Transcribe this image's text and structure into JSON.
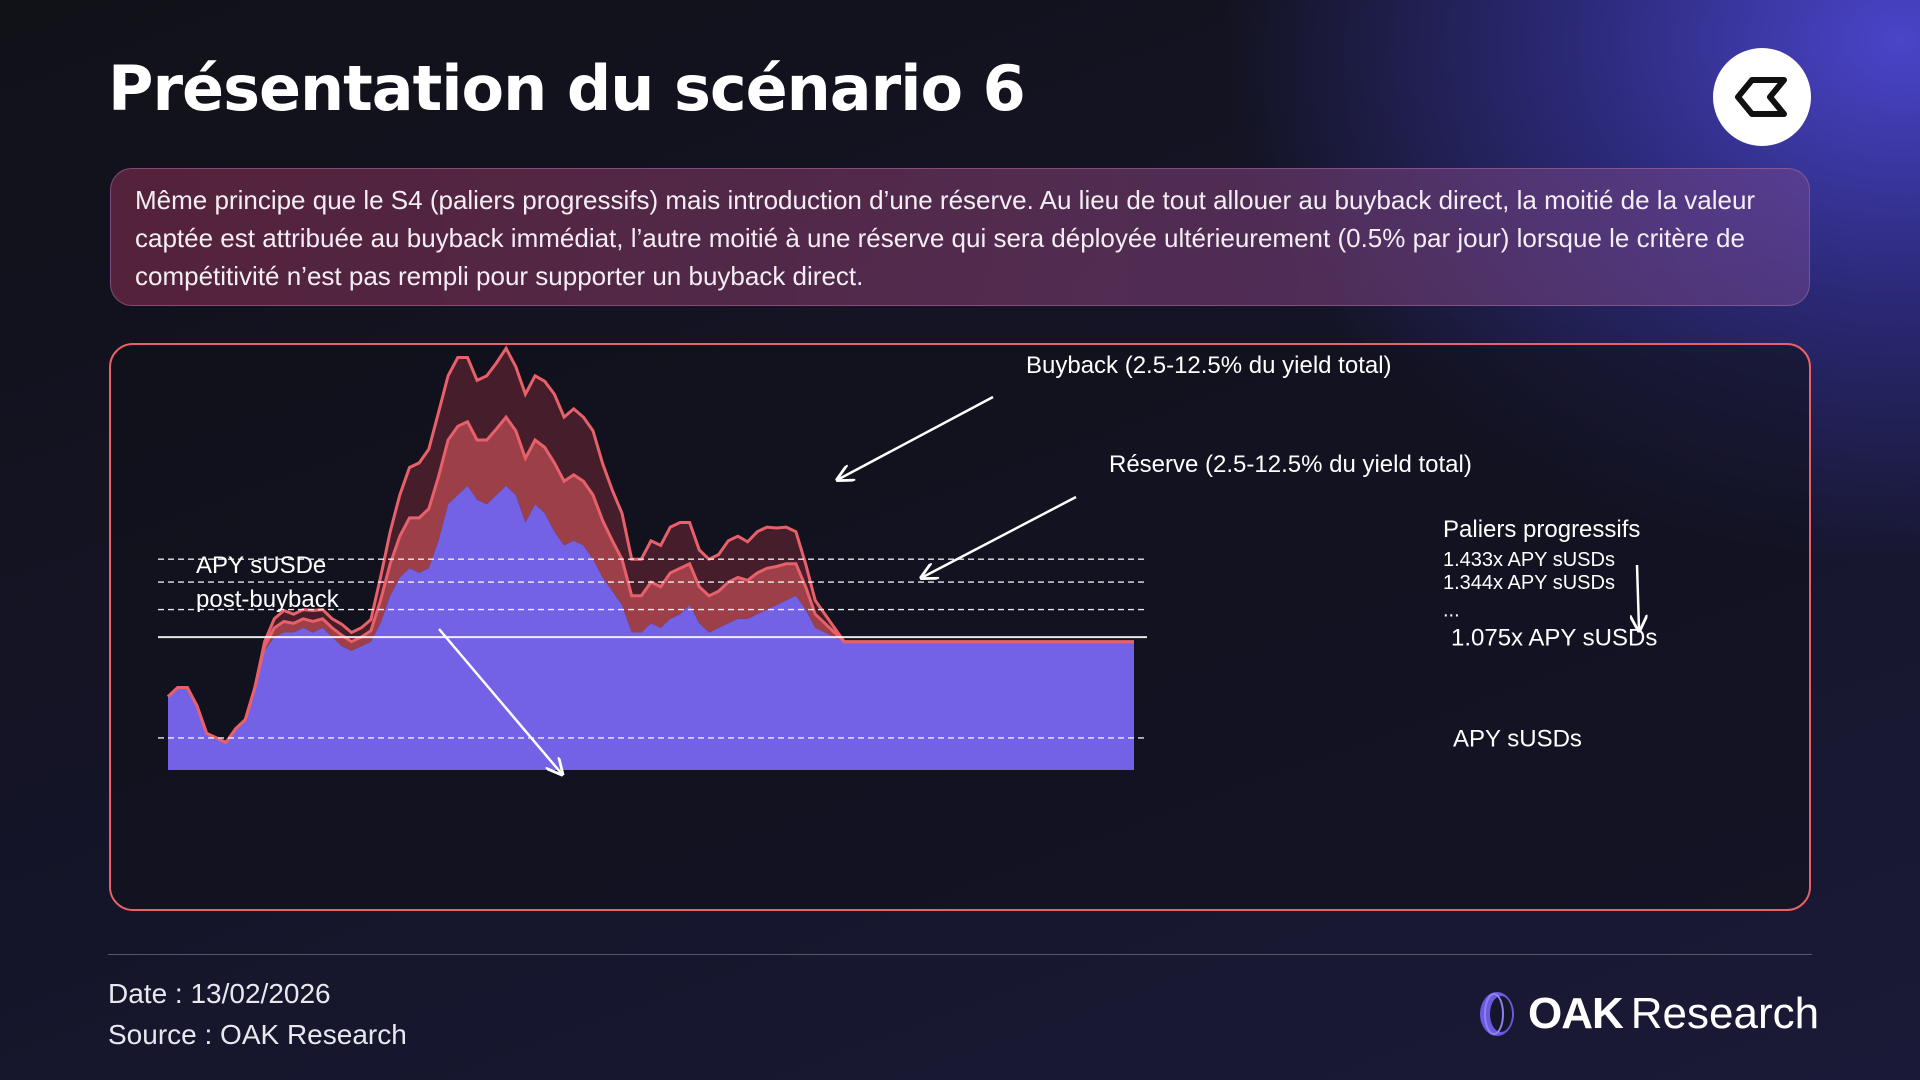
{
  "header": {
    "title": "Présentation du scénario 6",
    "logo_icon": "exponent-icon"
  },
  "description": "Même principe que le S4 (paliers progressifs) mais introduction d’une réserve. Au lieu de tout allouer au buyback direct, la moitié de la valeur captée est attribuée au buyback immédiat, l’autre moitié à une réserve qui sera déployée ultérieurement (0.5% par jour) lorsque le critère de compétitivité n’est pas rempli pour supporter un buyback direct.",
  "chart_data": {
    "type": "area",
    "title": "",
    "x": [
      0,
      1,
      2,
      3,
      4,
      5,
      6,
      7,
      8,
      9,
      10,
      11,
      12,
      13,
      14,
      15,
      16,
      17,
      18,
      19,
      20,
      21,
      22,
      23,
      24,
      25,
      26,
      27,
      28,
      29,
      30,
      31,
      32,
      33,
      34,
      35,
      36,
      37,
      38,
      39,
      40,
      41,
      42,
      43,
      44,
      45,
      46,
      47,
      48,
      49,
      50,
      51,
      52,
      53,
      54,
      55,
      56,
      57,
      58,
      59,
      60,
      61,
      62,
      63,
      64,
      65,
      66,
      67,
      68,
      69,
      70,
      71,
      72,
      73,
      74,
      75,
      76,
      77,
      78,
      79,
      80,
      81,
      82,
      83,
      84,
      85,
      86,
      87,
      88,
      89,
      90,
      91,
      92,
      93,
      94,
      95,
      96,
      97,
      98,
      99,
      100
    ],
    "series": [
      {
        "name": "APY sUSDe post-buyback",
        "color": "#7361e6",
        "values": [
          0.8,
          0.9,
          0.9,
          0.7,
          0.4,
          0.35,
          0.3,
          0.45,
          0.55,
          0.9,
          1.3,
          1.45,
          1.5,
          1.5,
          1.55,
          1.5,
          1.55,
          1.45,
          1.35,
          1.3,
          1.35,
          1.4,
          1.6,
          1.9,
          2.1,
          2.2,
          2.15,
          2.2,
          2.5,
          2.9,
          3.0,
          3.1,
          2.95,
          2.9,
          3.0,
          3.1,
          3.0,
          2.7,
          2.9,
          2.8,
          2.6,
          2.45,
          2.5,
          2.45,
          2.3,
          2.1,
          1.95,
          1.8,
          1.5,
          1.5,
          1.6,
          1.55,
          1.65,
          1.7,
          1.8,
          1.6,
          1.5,
          1.55,
          1.6,
          1.65,
          1.65,
          1.7,
          1.75,
          1.8,
          1.85,
          1.9,
          1.75,
          1.55,
          1.5,
          1.45,
          1.4,
          1.4,
          1.4,
          1.4,
          1.4,
          1.4,
          1.4,
          1.4,
          1.4,
          1.4,
          1.4,
          1.4,
          1.4,
          1.4,
          1.4,
          1.4,
          1.4,
          1.4,
          1.4,
          1.4,
          1.4,
          1.4,
          1.4,
          1.4,
          1.4,
          1.4,
          1.4,
          1.4,
          1.4,
          1.4,
          1.4
        ]
      },
      {
        "name": "Réserve (2.5-12.5% du yield total)",
        "color": "#e8606a",
        "values": [
          0,
          0,
          0,
          0,
          0,
          0,
          0,
          0,
          0,
          0,
          0.05,
          0.1,
          0.12,
          0.1,
          0.1,
          0.12,
          0.1,
          0.1,
          0.12,
          0.1,
          0.1,
          0.12,
          0.25,
          0.35,
          0.45,
          0.55,
          0.6,
          0.65,
          0.7,
          0.7,
          0.75,
          0.7,
          0.65,
          0.7,
          0.72,
          0.75,
          0.7,
          0.7,
          0.7,
          0.72,
          0.75,
          0.7,
          0.72,
          0.7,
          0.7,
          0.62,
          0.55,
          0.5,
          0.4,
          0.4,
          0.45,
          0.45,
          0.5,
          0.5,
          0.45,
          0.4,
          0.4,
          0.4,
          0.45,
          0.45,
          0.42,
          0.45,
          0.45,
          0.42,
          0.4,
          0.35,
          0.25,
          0.15,
          0.1,
          0.05,
          0,
          0,
          0,
          0,
          0,
          0,
          0,
          0,
          0,
          0,
          0,
          0,
          0,
          0,
          0,
          0,
          0,
          0,
          0,
          0,
          0,
          0,
          0,
          0,
          0,
          0,
          0,
          0,
          0,
          0,
          0
        ]
      },
      {
        "name": "Buyback (2.5-12.5% du yield total)",
        "color": "#e8606a",
        "values": [
          0,
          0,
          0,
          0,
          0,
          0,
          0,
          0,
          0,
          0,
          0.05,
          0.1,
          0.12,
          0.1,
          0.1,
          0.12,
          0.1,
          0.1,
          0.12,
          0.1,
          0.1,
          0.12,
          0.25,
          0.35,
          0.45,
          0.55,
          0.6,
          0.65,
          0.7,
          0.7,
          0.75,
          0.7,
          0.65,
          0.7,
          0.72,
          0.75,
          0.7,
          0.7,
          0.7,
          0.72,
          0.75,
          0.7,
          0.72,
          0.7,
          0.7,
          0.62,
          0.55,
          0.5,
          0.4,
          0.4,
          0.45,
          0.45,
          0.5,
          0.5,
          0.45,
          0.4,
          0.4,
          0.4,
          0.45,
          0.45,
          0.42,
          0.45,
          0.45,
          0.42,
          0.4,
          0.35,
          0.25,
          0.15,
          0.1,
          0.05,
          0,
          0,
          0,
          0,
          0,
          0,
          0,
          0,
          0,
          0,
          0,
          0,
          0,
          0,
          0,
          0,
          0,
          0,
          0,
          0,
          0,
          0,
          0,
          0,
          0,
          0,
          0,
          0,
          0,
          0,
          0
        ]
      }
    ],
    "thresholds": [
      {
        "label": "1.433x APY sUSDs",
        "value": 2.3,
        "style": "dashed"
      },
      {
        "label": "1.344x APY sUSDs",
        "value": 2.05,
        "style": "dashed"
      },
      {
        "label": "...",
        "value": 1.75,
        "style": "dashed"
      },
      {
        "label": "1.075x APY sUSDs",
        "value": 1.45,
        "style": "solid"
      },
      {
        "label": "APY sUSDs",
        "value": 0.35,
        "style": "dashed"
      }
    ],
    "annotations": {
      "buyback": "Buyback (2.5-12.5% du yield total)",
      "reserve": "Réserve (2.5-12.5% du yield total)",
      "apy_line1": "APY sUSDe",
      "apy_line2": "post-buyback",
      "paliers": "Paliers progressifs"
    },
    "ylim": [
      0,
      4.2
    ],
    "grid": false
  },
  "footer": {
    "date": "Date : 13/02/2026",
    "source": "Source : OAK Research",
    "brand_bold": "OAK",
    "brand_light": "Research",
    "brand_icon": "oak-logo-icon"
  },
  "colors": {
    "accent": "#e8606a",
    "apy_fill": "#7361e6",
    "reserve_fill": "#a4424c",
    "buyback_fill": "#4a1f2c"
  }
}
